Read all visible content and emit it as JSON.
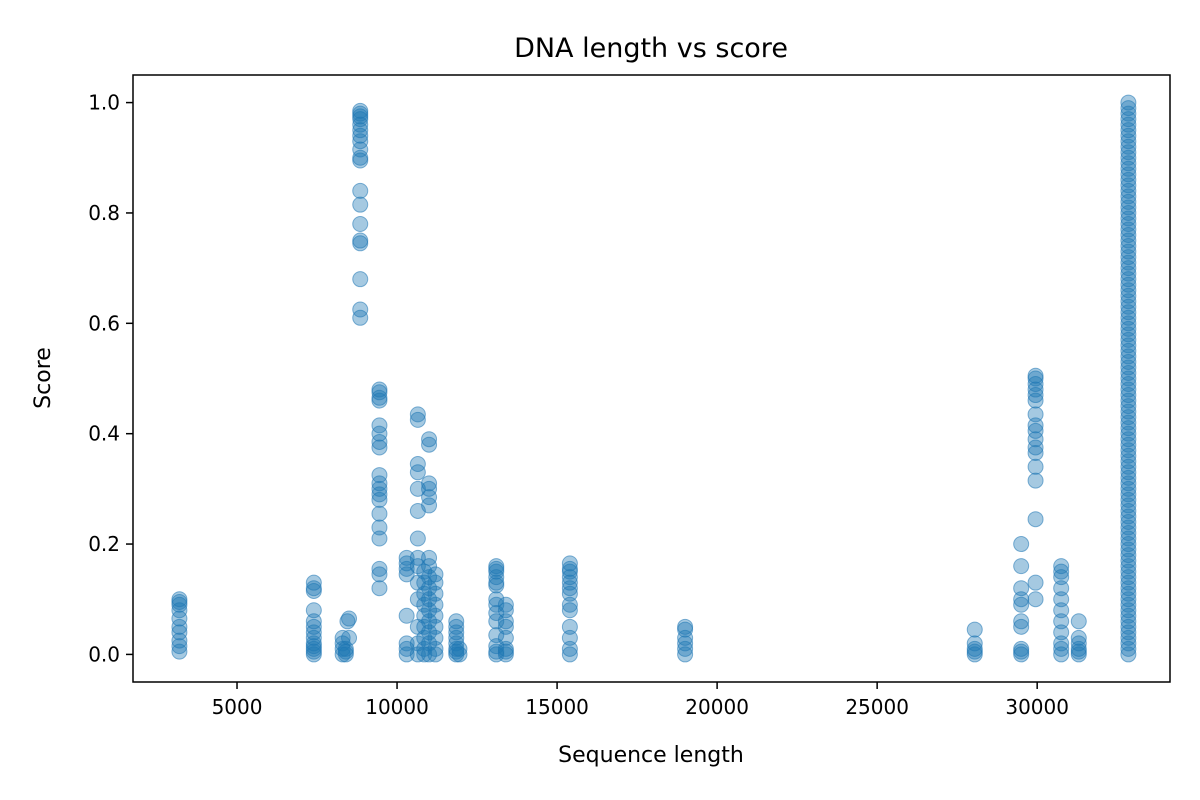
{
  "chart_data": {
    "type": "scatter",
    "title": "DNA length vs score",
    "xlabel": "Sequence length",
    "ylabel": "Score",
    "xlim": [
      1750,
      34150
    ],
    "ylim": [
      -0.05,
      1.05
    ],
    "xticks": [
      5000,
      10000,
      15000,
      20000,
      25000,
      30000
    ],
    "xtick_labels": [
      "5000",
      "10000",
      "15000",
      "20000",
      "25000",
      "30000"
    ],
    "yticks": [
      0.0,
      0.2,
      0.4,
      0.6,
      0.8,
      1.0
    ],
    "ytick_labels": [
      "0.0",
      "0.2",
      "0.4",
      "0.6",
      "0.8",
      "1.0"
    ],
    "grid": false,
    "marker_color": "#1f77b4",
    "marker_alpha": 0.4,
    "series": [
      {
        "points": [
          [
            3200,
            0.005
          ],
          [
            3200,
            0.015
          ],
          [
            3200,
            0.025
          ],
          [
            3200,
            0.04
          ],
          [
            3200,
            0.05
          ],
          [
            3200,
            0.065
          ],
          [
            3200,
            0.08
          ],
          [
            3200,
            0.09
          ],
          [
            3200,
            0.095
          ],
          [
            3200,
            0.1
          ],
          [
            7400,
            0.0
          ],
          [
            7400,
            0.005
          ],
          [
            7400,
            0.01
          ],
          [
            7400,
            0.015
          ],
          [
            7400,
            0.02
          ],
          [
            7400,
            0.03
          ],
          [
            7400,
            0.04
          ],
          [
            7400,
            0.05
          ],
          [
            7400,
            0.06
          ],
          [
            7400,
            0.08
          ],
          [
            7400,
            0.115
          ],
          [
            7400,
            0.12
          ],
          [
            7400,
            0.13
          ],
          [
            8300,
            0.0
          ],
          [
            8300,
            0.01
          ],
          [
            8300,
            0.02
          ],
          [
            8300,
            0.03
          ],
          [
            8400,
            0.0
          ],
          [
            8400,
            0.005
          ],
          [
            8400,
            0.01
          ],
          [
            8450,
            0.06
          ],
          [
            8500,
            0.065
          ],
          [
            8500,
            0.03
          ],
          [
            8850,
            0.61
          ],
          [
            8850,
            0.625
          ],
          [
            8850,
            0.68
          ],
          [
            8850,
            0.745
          ],
          [
            8850,
            0.75
          ],
          [
            8850,
            0.78
          ],
          [
            8850,
            0.815
          ],
          [
            8850,
            0.84
          ],
          [
            8850,
            0.895
          ],
          [
            8850,
            0.9
          ],
          [
            8850,
            0.915
          ],
          [
            8850,
            0.93
          ],
          [
            8850,
            0.94
          ],
          [
            8850,
            0.95
          ],
          [
            8850,
            0.96
          ],
          [
            8850,
            0.97
          ],
          [
            8850,
            0.975
          ],
          [
            8850,
            0.98
          ],
          [
            8850,
            0.985
          ],
          [
            9450,
            0.12
          ],
          [
            9450,
            0.145
          ],
          [
            9450,
            0.155
          ],
          [
            9450,
            0.21
          ],
          [
            9450,
            0.23
          ],
          [
            9450,
            0.255
          ],
          [
            9450,
            0.28
          ],
          [
            9450,
            0.29
          ],
          [
            9450,
            0.3
          ],
          [
            9450,
            0.31
          ],
          [
            9450,
            0.325
          ],
          [
            9450,
            0.375
          ],
          [
            9450,
            0.385
          ],
          [
            9450,
            0.4
          ],
          [
            9450,
            0.415
          ],
          [
            9450,
            0.46
          ],
          [
            9450,
            0.465
          ],
          [
            9450,
            0.475
          ],
          [
            9450,
            0.48
          ],
          [
            10300,
            0.0
          ],
          [
            10300,
            0.01
          ],
          [
            10300,
            0.02
          ],
          [
            10300,
            0.07
          ],
          [
            10300,
            0.145
          ],
          [
            10300,
            0.155
          ],
          [
            10300,
            0.165
          ],
          [
            10300,
            0.175
          ],
          [
            10650,
            0.0
          ],
          [
            10650,
            0.02
          ],
          [
            10650,
            0.05
          ],
          [
            10650,
            0.1
          ],
          [
            10650,
            0.13
          ],
          [
            10650,
            0.16
          ],
          [
            10650,
            0.175
          ],
          [
            10650,
            0.21
          ],
          [
            10650,
            0.26
          ],
          [
            10650,
            0.3
          ],
          [
            10650,
            0.33
          ],
          [
            10650,
            0.345
          ],
          [
            10650,
            0.425
          ],
          [
            10650,
            0.435
          ],
          [
            10850,
            0.0
          ],
          [
            10850,
            0.01
          ],
          [
            10850,
            0.03
          ],
          [
            10850,
            0.05
          ],
          [
            10850,
            0.07
          ],
          [
            10850,
            0.09
          ],
          [
            10850,
            0.11
          ],
          [
            10850,
            0.13
          ],
          [
            10850,
            0.15
          ],
          [
            11000,
            0.0
          ],
          [
            11000,
            0.02
          ],
          [
            11000,
            0.04
          ],
          [
            11000,
            0.06
          ],
          [
            11000,
            0.08
          ],
          [
            11000,
            0.1
          ],
          [
            11000,
            0.12
          ],
          [
            11000,
            0.14
          ],
          [
            11000,
            0.16
          ],
          [
            11000,
            0.175
          ],
          [
            11000,
            0.27
          ],
          [
            11000,
            0.285
          ],
          [
            11000,
            0.3
          ],
          [
            11000,
            0.31
          ],
          [
            11000,
            0.38
          ],
          [
            11000,
            0.39
          ],
          [
            11200,
            0.0
          ],
          [
            11200,
            0.01
          ],
          [
            11200,
            0.03
          ],
          [
            11200,
            0.05
          ],
          [
            11200,
            0.07
          ],
          [
            11200,
            0.09
          ],
          [
            11200,
            0.11
          ],
          [
            11200,
            0.13
          ],
          [
            11200,
            0.145
          ],
          [
            11850,
            0.0
          ],
          [
            11850,
            0.005
          ],
          [
            11850,
            0.01
          ],
          [
            11850,
            0.02
          ],
          [
            11850,
            0.03
          ],
          [
            11850,
            0.04
          ],
          [
            11850,
            0.05
          ],
          [
            11850,
            0.06
          ],
          [
            11950,
            0.0
          ],
          [
            11950,
            0.01
          ],
          [
            13100,
            0.0
          ],
          [
            13100,
            0.005
          ],
          [
            13100,
            0.015
          ],
          [
            13100,
            0.035
          ],
          [
            13100,
            0.06
          ],
          [
            13100,
            0.075
          ],
          [
            13100,
            0.09
          ],
          [
            13100,
            0.1
          ],
          [
            13100,
            0.125
          ],
          [
            13100,
            0.13
          ],
          [
            13100,
            0.14
          ],
          [
            13100,
            0.15
          ],
          [
            13100,
            0.155
          ],
          [
            13100,
            0.16
          ],
          [
            13400,
            0.0
          ],
          [
            13400,
            0.005
          ],
          [
            13400,
            0.01
          ],
          [
            13400,
            0.03
          ],
          [
            13400,
            0.05
          ],
          [
            13400,
            0.06
          ],
          [
            13400,
            0.08
          ],
          [
            13400,
            0.09
          ],
          [
            15400,
            0.0
          ],
          [
            15400,
            0.01
          ],
          [
            15400,
            0.03
          ],
          [
            15400,
            0.05
          ],
          [
            15400,
            0.08
          ],
          [
            15400,
            0.09
          ],
          [
            15400,
            0.11
          ],
          [
            15400,
            0.12
          ],
          [
            15400,
            0.13
          ],
          [
            15400,
            0.14
          ],
          [
            15400,
            0.15
          ],
          [
            15400,
            0.155
          ],
          [
            15400,
            0.165
          ],
          [
            19000,
            0.0
          ],
          [
            19000,
            0.01
          ],
          [
            19000,
            0.02
          ],
          [
            19000,
            0.03
          ],
          [
            19000,
            0.045
          ],
          [
            19000,
            0.05
          ],
          [
            28050,
            0.0
          ],
          [
            28050,
            0.005
          ],
          [
            28050,
            0.01
          ],
          [
            28050,
            0.02
          ],
          [
            28050,
            0.045
          ],
          [
            29500,
            0.0
          ],
          [
            29500,
            0.005
          ],
          [
            29500,
            0.01
          ],
          [
            29500,
            0.05
          ],
          [
            29500,
            0.06
          ],
          [
            29500,
            0.09
          ],
          [
            29500,
            0.1
          ],
          [
            29500,
            0.12
          ],
          [
            29500,
            0.16
          ],
          [
            29500,
            0.2
          ],
          [
            29950,
            0.1
          ],
          [
            29950,
            0.13
          ],
          [
            29950,
            0.245
          ],
          [
            29950,
            0.315
          ],
          [
            29950,
            0.34
          ],
          [
            29950,
            0.365
          ],
          [
            29950,
            0.375
          ],
          [
            29950,
            0.39
          ],
          [
            29950,
            0.405
          ],
          [
            29950,
            0.415
          ],
          [
            29950,
            0.435
          ],
          [
            29950,
            0.46
          ],
          [
            29950,
            0.47
          ],
          [
            29950,
            0.48
          ],
          [
            29950,
            0.49
          ],
          [
            29950,
            0.5
          ],
          [
            29950,
            0.505
          ],
          [
            30750,
            0.0
          ],
          [
            30750,
            0.01
          ],
          [
            30750,
            0.02
          ],
          [
            30750,
            0.04
          ],
          [
            30750,
            0.06
          ],
          [
            30750,
            0.08
          ],
          [
            30750,
            0.1
          ],
          [
            30750,
            0.12
          ],
          [
            30750,
            0.14
          ],
          [
            30750,
            0.15
          ],
          [
            30750,
            0.16
          ],
          [
            31300,
            0.0
          ],
          [
            31300,
            0.005
          ],
          [
            31300,
            0.01
          ],
          [
            31300,
            0.02
          ],
          [
            31300,
            0.03
          ],
          [
            31300,
            0.06
          ]
        ],
        "columns": [
          {
            "x": 32850,
            "y_min": 0.0,
            "y_max": 1.0,
            "step": 0.01
          }
        ]
      }
    ]
  }
}
